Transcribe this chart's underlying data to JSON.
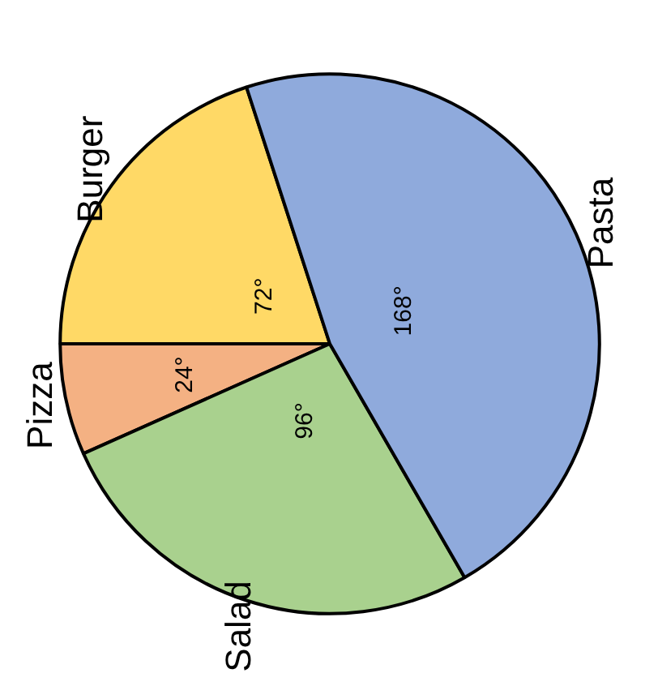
{
  "chart_data": {
    "type": "pie",
    "categories": [
      "Burger",
      "Pizza",
      "Salad",
      "Pasta"
    ],
    "values": [
      72,
      24,
      96,
      168
    ],
    "colors": [
      "#ffd966",
      "#f4b183",
      "#a9d18e",
      "#8faadc"
    ],
    "value_labels": [
      "72°",
      "24°",
      "96°",
      "168°"
    ]
  }
}
